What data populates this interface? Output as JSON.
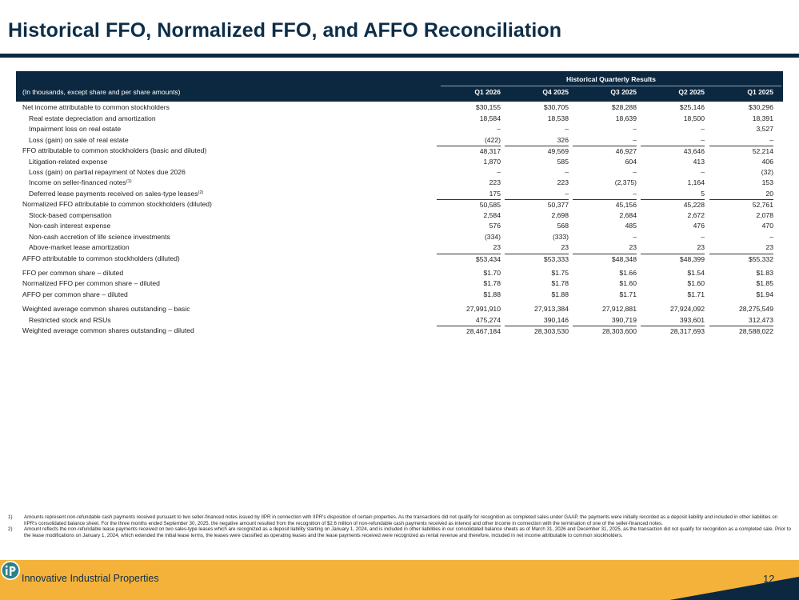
{
  "title": "Historical FFO, Normalized FFO, and AFFO Reconciliation",
  "table": {
    "group_title": "Historical Quarterly Results",
    "units_note": "(In thousands, except share and per share amounts)",
    "columns": [
      "Q1 2026",
      "Q4 2025",
      "Q3 2025",
      "Q2 2025",
      "Q1 2025"
    ],
    "rows": [
      {
        "label": "Net income attributable to common stockholders",
        "values": [
          "$30,155",
          "$30,705",
          "$28,288",
          "$25,146",
          "$30,296"
        ]
      },
      {
        "label": "Real estate depreciation and amortization",
        "indent": true,
        "values": [
          "18,584",
          "18,538",
          "18,639",
          "18,500",
          "18,391"
        ]
      },
      {
        "label": "Impairment loss on real estate",
        "indent": true,
        "values": [
          "–",
          "–",
          "–",
          "–",
          "3,527"
        ]
      },
      {
        "label": "Loss (gain) on sale of real estate",
        "indent": true,
        "values": [
          "(422)",
          "326",
          "–",
          "–",
          "–"
        ]
      },
      {
        "label": "FFO attributable to common stockholders (basic and diluted)",
        "top_line": true,
        "values": [
          "48,317",
          "49,569",
          "46,927",
          "43,646",
          "52,214"
        ]
      },
      {
        "label": "Litigation-related expense",
        "indent": true,
        "values": [
          "1,870",
          "585",
          "604",
          "413",
          "406"
        ]
      },
      {
        "label": "Loss (gain) on partial repayment of Notes due 2026",
        "indent": true,
        "values": [
          "–",
          "–",
          "–",
          "–",
          "(32)"
        ]
      },
      {
        "label": "Income on seller-financed notes",
        "sup": "(1)",
        "indent": true,
        "values": [
          "223",
          "223",
          "(2,375)",
          "1,164",
          "153"
        ]
      },
      {
        "label": "Deferred lease payments received on sales-type leases",
        "sup": "(2)",
        "indent": true,
        "values": [
          "175",
          "–",
          "–",
          "5",
          "20"
        ]
      },
      {
        "label": "Normalized FFO attributable to common stockholders (diluted)",
        "top_line": true,
        "values": [
          "50,585",
          "50,377",
          "45,156",
          "45,228",
          "52,761"
        ]
      },
      {
        "label": "Stock-based compensation",
        "indent": true,
        "values": [
          "2,584",
          "2,698",
          "2,684",
          "2,672",
          "2,078"
        ]
      },
      {
        "label": "Non-cash interest expense",
        "indent": true,
        "values": [
          "576",
          "568",
          "485",
          "476",
          "470"
        ]
      },
      {
        "label": "Non-cash accretion of life science investments",
        "indent": true,
        "values": [
          "(334)",
          "(333)",
          "–",
          "–",
          "–"
        ]
      },
      {
        "label": "Above-market lease amortization",
        "indent": true,
        "values": [
          "23",
          "23",
          "23",
          "23",
          "23"
        ]
      },
      {
        "label": "AFFO attributable to common stockholders (diluted)",
        "top_line": true,
        "values": [
          "$53,434",
          "$53,333",
          "$48,348",
          "$48,399",
          "$55,332"
        ]
      },
      {
        "label": "FFO per common share – diluted",
        "gap": true,
        "values": [
          "$1.70",
          "$1.75",
          "$1.66",
          "$1.54",
          "$1.83"
        ]
      },
      {
        "label": "Normalized FFO per common share – diluted",
        "values": [
          "$1.78",
          "$1.78",
          "$1.60",
          "$1.60",
          "$1.85"
        ]
      },
      {
        "label": "AFFO per common share – diluted",
        "values": [
          "$1.88",
          "$1.88",
          "$1.71",
          "$1.71",
          "$1.94"
        ]
      },
      {
        "label": "Weighted average common shares outstanding – basic",
        "gap": true,
        "values": [
          "27,991,910",
          "27,913,384",
          "27,912,881",
          "27,924,092",
          "28,275,549"
        ]
      },
      {
        "label": "Restricted stock and RSUs",
        "indent": true,
        "values": [
          "475,274",
          "390,146",
          "390,719",
          "393,601",
          "312,473"
        ]
      },
      {
        "label": "Weighted average common shares outstanding – diluted",
        "top_line": true,
        "values": [
          "28,467,184",
          "28,303,530",
          "28,303,600",
          "28,317,693",
          "28,588,022"
        ]
      }
    ]
  },
  "footnotes": [
    {
      "num": "1)",
      "text": "Amounts represent non-refundable cash payments received pursuant to two seller-financed notes issued by IIPR in connection with IIPR's disposition of certain properties. As the transactions did not qualify for recognition as completed sales under GAAP, the payments were initially recorded as a deposit liability and included in other liabilities on IIPR's consolidated balance sheet. For the three months ended September 30, 2025, the negative amount resulted from the recognition of $2.6 million of non-refundable cash payments received as interest and other income in connection with the termination of one of the seller-financed notes."
    },
    {
      "num": "2)",
      "text": "Amount reflects the non-refundable lease payments received on two sales-type leases which are recognized as a deposit liability starting on January 1, 2024, and is included in other liabilities in our consolidated balance sheets as of March 31, 2026 and December 31, 2025, as the transaction did not qualify for recognition as a completed sale. Prior to the lease modifications on January 1, 2024, which extended the initial lease terms, the leases were classified as operating leases and the lease payments received were recognized as rental revenue and therefore, included in net income attributable to common stockholders."
    }
  ],
  "footer": {
    "company": "Innovative Industrial Properties",
    "page_number": "12",
    "logo_icon": "iip-logo-icon",
    "colors": {
      "gold": "#f4b23a",
      "navy": "#0c2840",
      "teal": "#2d7f89"
    }
  }
}
